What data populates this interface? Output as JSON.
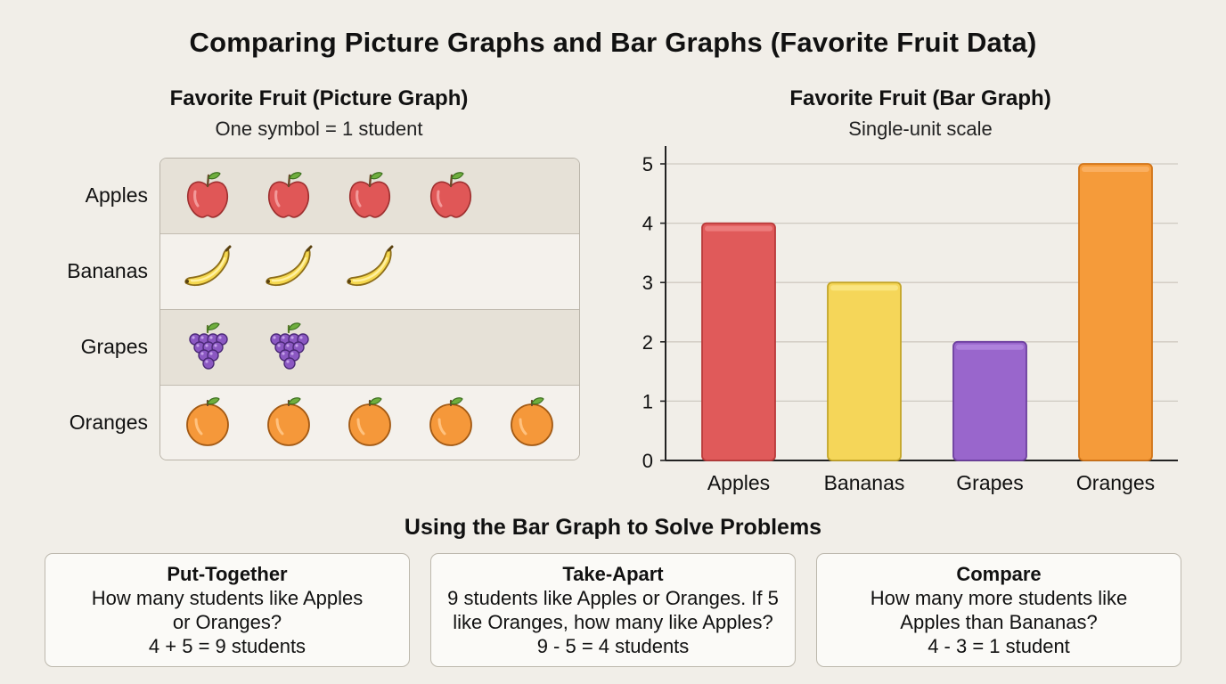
{
  "title": "Comparing Picture Graphs and Bar Graphs (Favorite Fruit Data)",
  "picture_graph": {
    "title": "Favorite Fruit (Picture Graph)",
    "caption": "One symbol = 1 student",
    "rows": [
      {
        "label": "Apples",
        "count": 4,
        "icon": "apple-icon"
      },
      {
        "label": "Bananas",
        "count": 3,
        "icon": "banana-icon"
      },
      {
        "label": "Grapes",
        "count": 2,
        "icon": "grapes-icon"
      },
      {
        "label": "Oranges",
        "count": 5,
        "icon": "orange-icon"
      }
    ]
  },
  "chart_data": {
    "type": "bar",
    "title": "Favorite Fruit (Bar Graph)",
    "subtitle": "Single-unit scale",
    "categories": [
      "Apples",
      "Bananas",
      "Grapes",
      "Oranges"
    ],
    "values": [
      4,
      3,
      2,
      5
    ],
    "colors": [
      "#e05a5a",
      "#f5d659",
      "#9966cc",
      "#f59b3a"
    ],
    "ylim": [
      0,
      5
    ],
    "yticks": [
      0,
      1,
      2,
      3,
      4,
      5
    ],
    "grid": true,
    "xlabel": "",
    "ylabel": ""
  },
  "problems": {
    "title": "Using the Bar Graph to Solve Problems",
    "cards": [
      {
        "title": "Put-Together",
        "text": "How many students like Apples or Oranges?",
        "equation": "4 + 5 = 9 students"
      },
      {
        "title": "Take-Apart",
        "text": "9 students like Apples or Oranges. If 5 like Oranges, how many like Apples?",
        "equation": "9 - 5 = 4 students"
      },
      {
        "title": "Compare",
        "text": "How many more students like Apples than Bananas?",
        "equation": "4 - 3 = 1 student"
      }
    ]
  }
}
